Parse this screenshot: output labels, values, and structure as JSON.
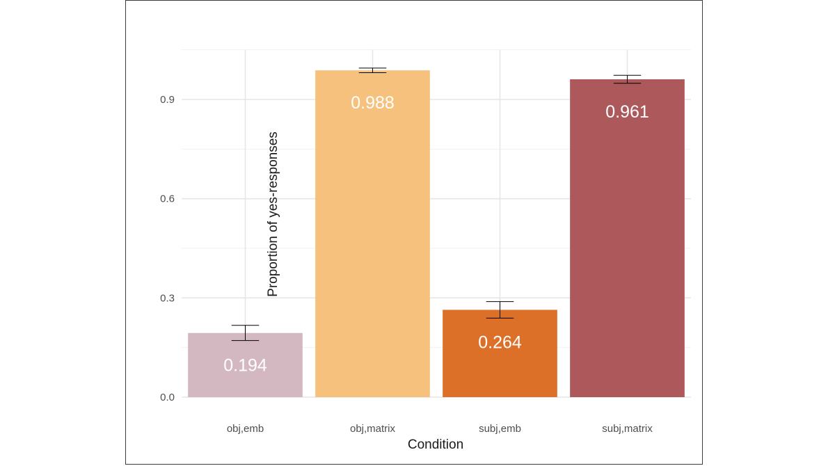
{
  "chart_data": {
    "type": "bar",
    "title": "",
    "xlabel": "Condition",
    "ylabel": "Proportion of yes-responses",
    "categories": [
      "obj,emb",
      "obj,matrix",
      "subj,emb",
      "subj,matrix"
    ],
    "values": [
      0.194,
      0.988,
      0.264,
      0.961
    ],
    "data_labels": [
      "0.194",
      "0.988",
      "0.264",
      "0.961"
    ],
    "error_bars": [
      {
        "low": 0.171,
        "high": 0.217
      },
      {
        "low": 0.981,
        "high": 0.995
      },
      {
        "low": 0.239,
        "high": 0.289
      },
      {
        "low": 0.949,
        "high": 0.973
      }
    ],
    "colors": [
      "#d3b8c2",
      "#f6c17c",
      "#dd7029",
      "#ad595b"
    ],
    "ylim": [
      0,
      1.05
    ],
    "yticks": [
      0,
      0.3,
      0.6,
      0.9
    ],
    "ytick_labels": [
      "0.0",
      "0.3",
      "0.6",
      "0.9"
    ],
    "grid": true,
    "legend": "none"
  }
}
